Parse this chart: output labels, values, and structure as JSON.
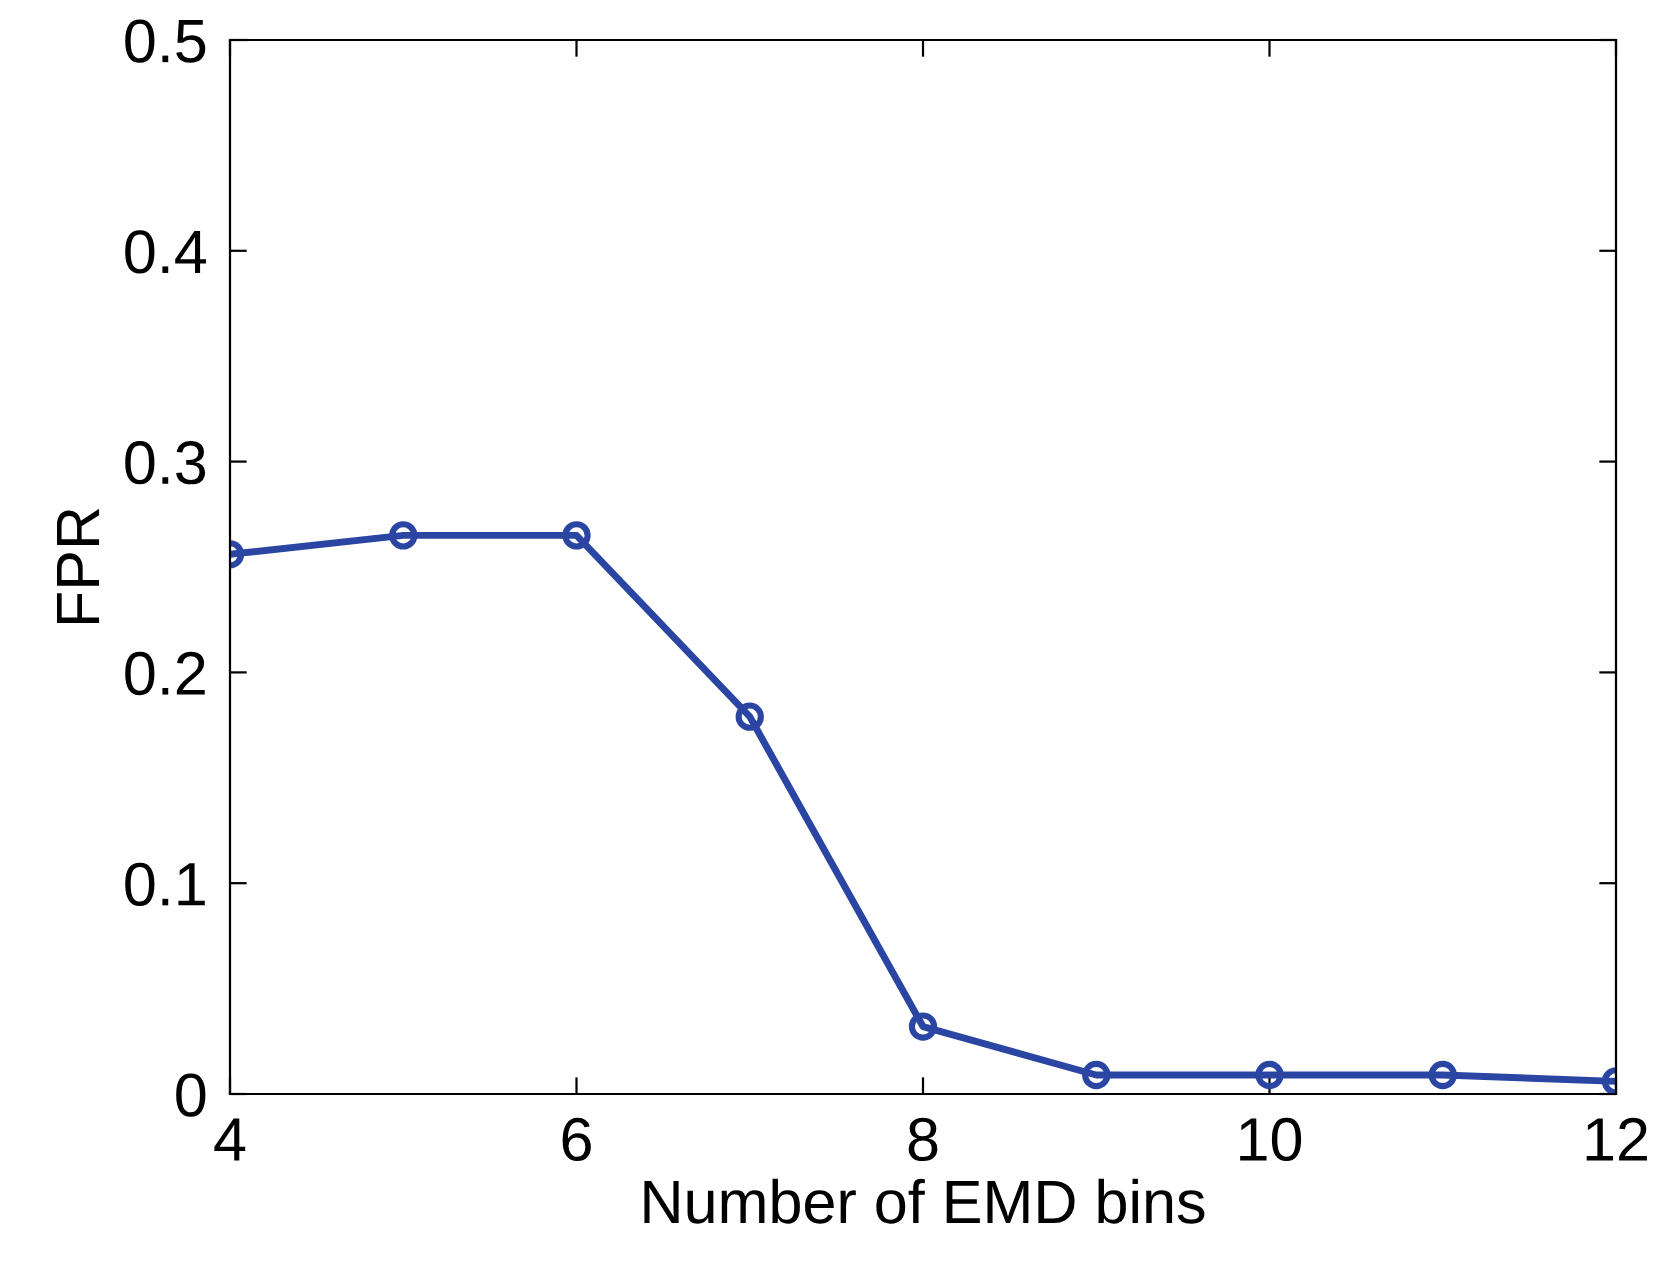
{
  "chart_data": {
    "type": "line",
    "xlabel": "Number of EMD bins",
    "ylabel": "FPR",
    "x": [
      4,
      5,
      6,
      7,
      8,
      9,
      10,
      11,
      12
    ],
    "series": [
      {
        "color": "#2b45a3",
        "values": [
          0.256,
          0.265,
          0.265,
          0.179,
          0.032,
          0.009,
          0.009,
          0.009,
          0.006
        ]
      }
    ],
    "marker": "circle",
    "line_style": "solid",
    "xlim": [
      4,
      12
    ],
    "xticks": [
      4,
      6,
      8,
      10,
      12
    ],
    "ylim": [
      0,
      0.5
    ],
    "yticks": [
      0,
      0.1,
      0.2,
      0.3,
      0.4,
      0.5
    ],
    "grid": false,
    "legend": false
  }
}
